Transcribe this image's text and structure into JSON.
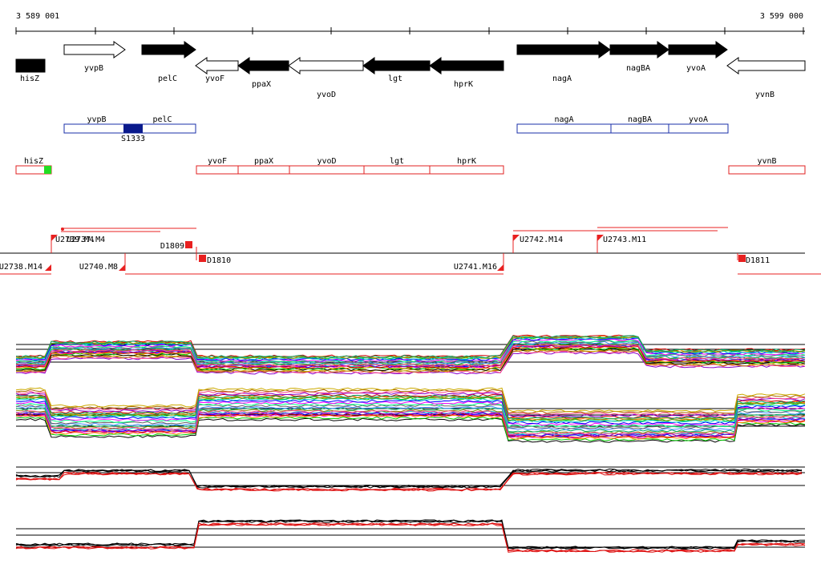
{
  "coordinates": {
    "start": "3 589 001",
    "end": "3 599 000"
  },
  "genes": [
    {
      "name": "hisZ",
      "strand": "+",
      "filled": true
    },
    {
      "name": "yvpB",
      "strand": "+",
      "filled": false
    },
    {
      "name": "pelC",
      "strand": "+",
      "filled": true
    },
    {
      "name": "yvoF",
      "strand": "-",
      "filled": false
    },
    {
      "name": "ppaX",
      "strand": "-",
      "filled": true
    },
    {
      "name": "yvoD",
      "strand": "-",
      "filled": false
    },
    {
      "name": "lgt",
      "strand": "-",
      "filled": true
    },
    {
      "name": "hprK",
      "strand": "-",
      "filled": true
    },
    {
      "name": "nagA",
      "strand": "+",
      "filled": true
    },
    {
      "name": "nagBA",
      "strand": "+",
      "filled": true
    },
    {
      "name": "yvoA",
      "strand": "+",
      "filled": true
    },
    {
      "name": "yvnB",
      "strand": "-",
      "filled": false
    }
  ],
  "operons_blue": {
    "color": "#1a2fa8",
    "boxes": [
      "yvpB",
      "pelC",
      "nagA",
      "nagBA",
      "yvoA"
    ],
    "site": "S1333",
    "site_color": "#0a1a8c"
  },
  "operons_red": {
    "color": "#e02020",
    "boxes": [
      "hisZ",
      "yvoF",
      "ppaX",
      "yvoD",
      "lgt",
      "hprK",
      "yvnB"
    ],
    "marker_color": "#22dd22"
  },
  "transcripts": [
    {
      "label": "U2739.M4"
    },
    {
      "label": "U2737.M4"
    },
    {
      "label": "D1809"
    },
    {
      "label": "U2738.M14"
    },
    {
      "label": "U2740.M8"
    },
    {
      "label": "D1810"
    },
    {
      "label": "U2741.M16"
    },
    {
      "label": "U2742.M14"
    },
    {
      "label": "U2743.M11"
    },
    {
      "label": "D1811"
    }
  ],
  "colors": {
    "transcript": "#e82020",
    "axis": "#000000",
    "red_trace": "#dd1111",
    "black_trace": "#000000"
  },
  "expression_panels": [
    {
      "name": "multi-condition-plus",
      "style": "multicolor"
    },
    {
      "name": "multi-condition-minus",
      "style": "multicolor"
    },
    {
      "name": "replicates-plus",
      "style": "red-black"
    },
    {
      "name": "replicates-minus",
      "style": "red-black"
    }
  ],
  "trace_palette": [
    "#ff00ff",
    "#00cc00",
    "#0000ff",
    "#ff8800",
    "#00cccc",
    "#cc0000",
    "#888800",
    "#8800cc",
    "#00aa66",
    "#ff4488",
    "#4488ff",
    "#aa6600",
    "#666666",
    "#ccaa00",
    "#00ff88",
    "#000000"
  ]
}
